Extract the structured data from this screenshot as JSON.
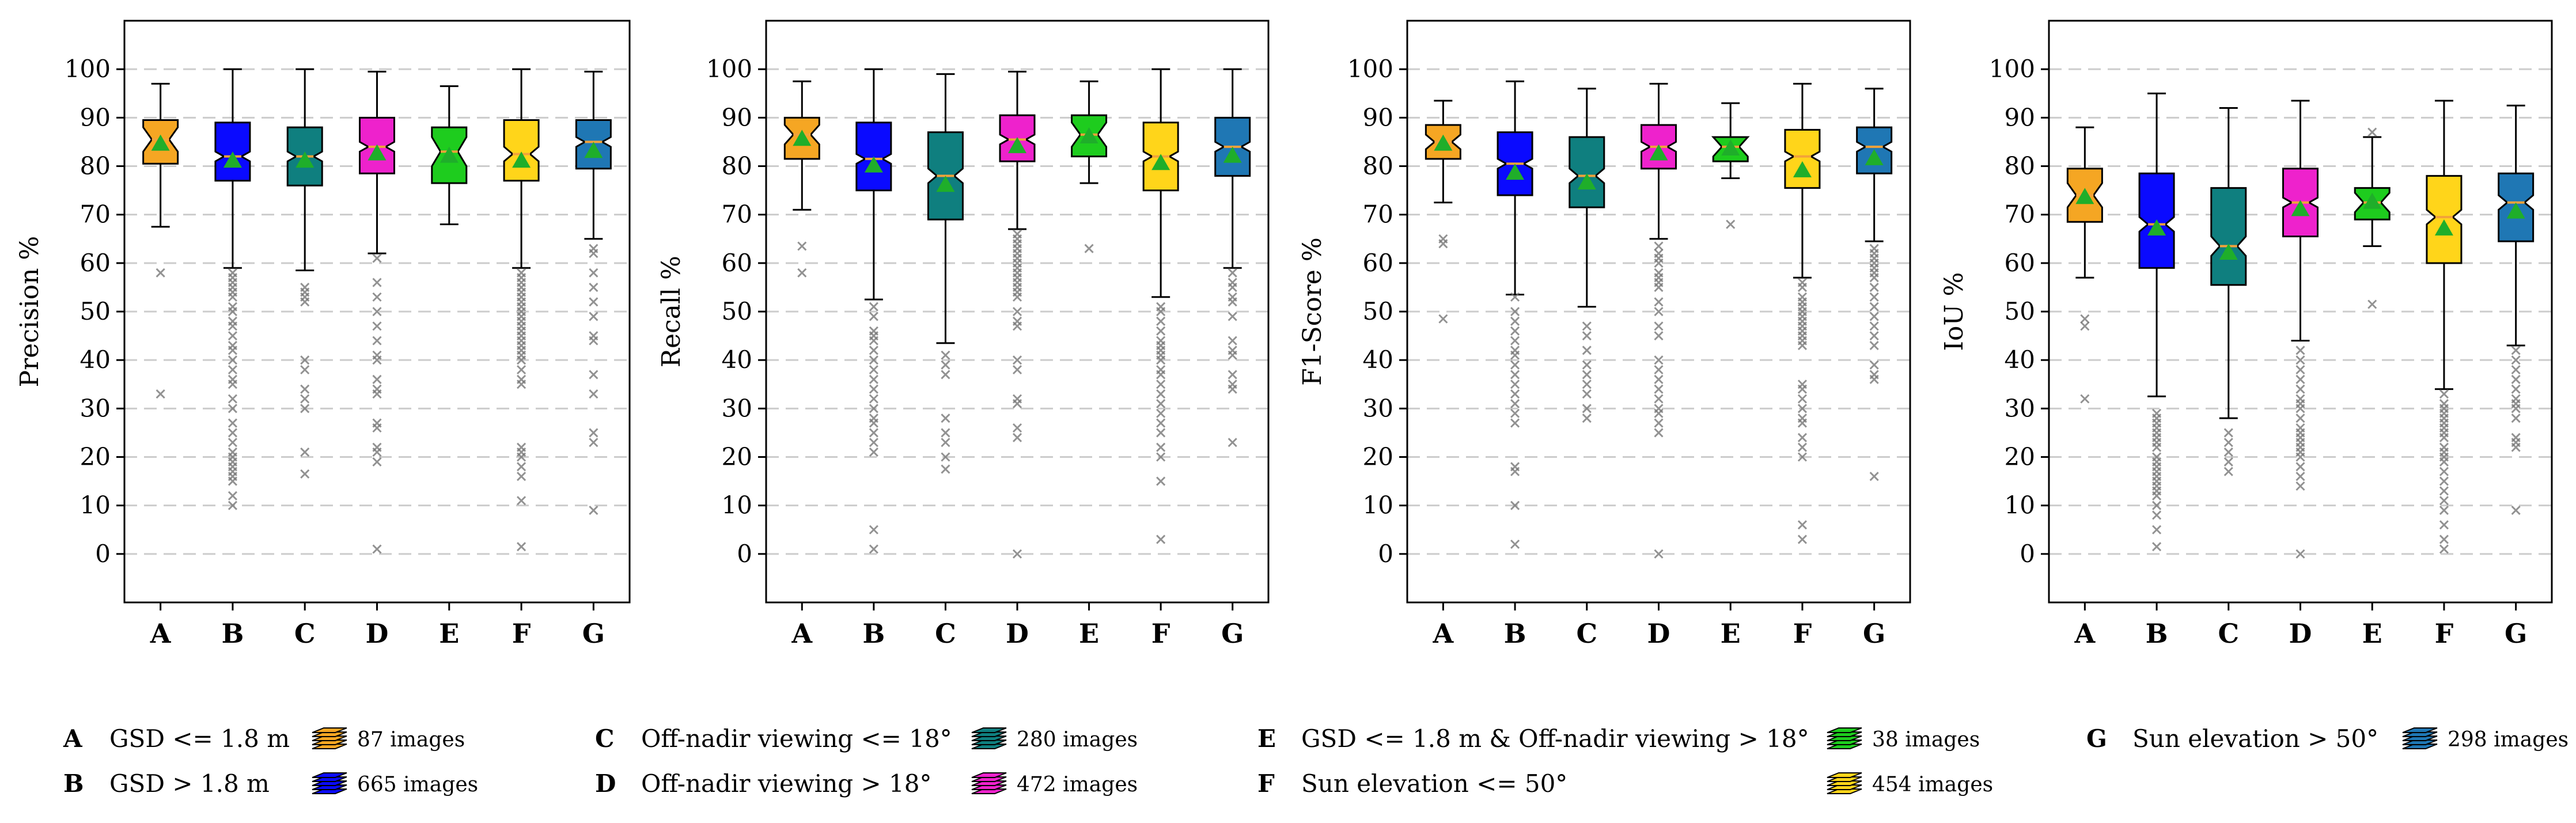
{
  "chart_data": [
    {
      "type": "boxplot",
      "ylabel": "Precision %",
      "categories": [
        "A",
        "B",
        "C",
        "D",
        "E",
        "F",
        "G"
      ],
      "yticks": [
        0,
        10,
        20,
        30,
        40,
        50,
        60,
        70,
        80,
        90,
        100
      ],
      "ylim": [
        -10,
        110
      ],
      "grid": "horizontal dashed",
      "boxes": [
        {
          "category": "A",
          "q1": 80.5,
          "median": 85.5,
          "q3": 89.5,
          "whislo": 67.5,
          "whishi": 97,
          "mean": 84.5,
          "notch_lo": 83,
          "notch_hi": 88,
          "fliers": [
            58,
            33
          ]
        },
        {
          "category": "B",
          "q1": 77,
          "median": 82,
          "q3": 89,
          "whislo": 59,
          "whishi": 100,
          "mean": 81,
          "notch_lo": 81,
          "notch_hi": 83,
          "fliers": [
            58,
            57,
            56,
            55,
            54,
            53,
            51,
            50,
            48,
            47,
            45,
            43,
            42,
            40,
            38,
            36,
            35,
            32,
            30,
            27,
            25,
            23,
            21,
            20,
            19,
            18,
            17,
            16,
            15,
            12,
            10
          ]
        },
        {
          "category": "C",
          "q1": 76,
          "median": 82,
          "q3": 88,
          "whislo": 58.5,
          "whishi": 100,
          "mean": 81,
          "notch_lo": 81,
          "notch_hi": 83,
          "fliers": [
            55,
            54,
            53,
            52,
            40,
            38,
            34,
            32,
            30,
            21,
            16.5
          ]
        },
        {
          "category": "D",
          "q1": 78.5,
          "median": 84,
          "q3": 90,
          "whislo": 62,
          "whishi": 99.5,
          "mean": 82.5,
          "notch_lo": 83,
          "notch_hi": 85,
          "fliers": [
            61,
            56,
            53,
            50,
            47,
            44,
            41,
            40,
            36,
            34,
            33,
            27,
            26,
            22,
            21,
            19,
            1
          ]
        },
        {
          "category": "E",
          "q1": 76.5,
          "median": 83,
          "q3": 88,
          "whislo": 68,
          "whishi": 96.5,
          "mean": 82,
          "notch_lo": 80,
          "notch_hi": 86,
          "fliers": []
        },
        {
          "category": "F",
          "q1": 77,
          "median": 82.5,
          "q3": 89.5,
          "whislo": 59,
          "whishi": 100,
          "mean": 81,
          "notch_lo": 81,
          "notch_hi": 84,
          "fliers": [
            58,
            57,
            56,
            55,
            54,
            53,
            52,
            51,
            50,
            49,
            48,
            47,
            46,
            45,
            44,
            43,
            42,
            41,
            40,
            38,
            36,
            35,
            22,
            21,
            20,
            18,
            16,
            11,
            1.5
          ]
        },
        {
          "category": "G",
          "q1": 79.5,
          "median": 85,
          "q3": 89.5,
          "whislo": 65,
          "whishi": 99.5,
          "mean": 83,
          "notch_lo": 84,
          "notch_hi": 86,
          "fliers": [
            63,
            62,
            58,
            55,
            52,
            49,
            45,
            44,
            37,
            33,
            25,
            23,
            9
          ]
        }
      ]
    },
    {
      "type": "boxplot",
      "ylabel": "Recall %",
      "categories": [
        "A",
        "B",
        "C",
        "D",
        "E",
        "F",
        "G"
      ],
      "yticks": [
        0,
        10,
        20,
        30,
        40,
        50,
        60,
        70,
        80,
        90,
        100
      ],
      "ylim": [
        -10,
        110
      ],
      "grid": "horizontal dashed",
      "boxes": [
        {
          "category": "A",
          "q1": 81.5,
          "median": 86.5,
          "q3": 90,
          "whislo": 71,
          "whishi": 97.5,
          "mean": 85.5,
          "notch_lo": 84.5,
          "notch_hi": 88.5,
          "fliers": [
            63.5,
            58
          ]
        },
        {
          "category": "B",
          "q1": 75,
          "median": 81.5,
          "q3": 89,
          "whislo": 52.5,
          "whishi": 100,
          "mean": 80,
          "notch_lo": 80.5,
          "notch_hi": 82.5,
          "fliers": [
            51,
            49,
            46,
            45,
            44,
            42,
            40,
            38,
            36,
            34,
            32,
            30,
            28,
            27,
            25,
            23,
            21,
            5,
            1
          ]
        },
        {
          "category": "C",
          "q1": 69,
          "median": 78,
          "q3": 87,
          "whislo": 43.5,
          "whishi": 99,
          "mean": 76,
          "notch_lo": 76.5,
          "notch_hi": 79.5,
          "fliers": [
            41,
            39,
            37,
            28,
            25,
            23,
            20,
            17.5
          ]
        },
        {
          "category": "D",
          "q1": 81,
          "median": 85.5,
          "q3": 90.5,
          "whislo": 67,
          "whishi": 99.5,
          "mean": 84,
          "notch_lo": 84.5,
          "notch_hi": 86.5,
          "fliers": [
            66,
            65,
            64,
            63,
            62,
            61,
            60,
            59,
            58,
            57,
            56,
            55,
            54,
            53,
            50,
            48,
            47,
            40,
            38,
            32,
            31,
            26,
            24,
            0
          ]
        },
        {
          "category": "E",
          "q1": 82,
          "median": 86.5,
          "q3": 90.5,
          "whislo": 76.5,
          "whishi": 97.5,
          "mean": 86,
          "notch_lo": 84,
          "notch_hi": 89,
          "fliers": [
            63
          ]
        },
        {
          "category": "F",
          "q1": 75,
          "median": 82,
          "q3": 89,
          "whislo": 53,
          "whishi": 100,
          "mean": 80.5,
          "notch_lo": 81,
          "notch_hi": 83,
          "fliers": [
            51,
            50,
            48,
            46,
            44,
            43,
            42,
            41,
            40,
            38,
            37,
            35,
            33,
            31,
            29,
            27,
            25,
            22,
            20,
            15,
            3
          ]
        },
        {
          "category": "G",
          "q1": 78,
          "median": 84,
          "q3": 90,
          "whislo": 59,
          "whishi": 100,
          "mean": 82,
          "notch_lo": 83,
          "notch_hi": 85,
          "fliers": [
            58,
            56,
            55,
            53,
            52,
            49,
            44,
            42,
            41,
            37,
            35,
            34,
            23
          ]
        }
      ]
    },
    {
      "type": "boxplot",
      "ylabel": "F1-Score %",
      "categories": [
        "A",
        "B",
        "C",
        "D",
        "E",
        "F",
        "G"
      ],
      "yticks": [
        0,
        10,
        20,
        30,
        40,
        50,
        60,
        70,
        80,
        90,
        100
      ],
      "ylim": [
        -10,
        110
      ],
      "grid": "horizontal dashed",
      "boxes": [
        {
          "category": "A",
          "q1": 81.5,
          "median": 85,
          "q3": 88.5,
          "whislo": 72.5,
          "whishi": 93.5,
          "mean": 84.5,
          "notch_lo": 83.5,
          "notch_hi": 86.5,
          "fliers": [
            65,
            64,
            48.5
          ]
        },
        {
          "category": "B",
          "q1": 74,
          "median": 80.5,
          "q3": 87,
          "whislo": 53.5,
          "whishi": 97.5,
          "mean": 78.5,
          "notch_lo": 79.5,
          "notch_hi": 81.5,
          "fliers": [
            53,
            50,
            48,
            46,
            44,
            42,
            41,
            39,
            37,
            35,
            33,
            31,
            29,
            27,
            18,
            17,
            10,
            2
          ]
        },
        {
          "category": "C",
          "q1": 71.5,
          "median": 78,
          "q3": 86,
          "whislo": 51,
          "whishi": 96,
          "mean": 76.5,
          "notch_lo": 76.5,
          "notch_hi": 79.5,
          "fliers": [
            47,
            45,
            42,
            39,
            37,
            35,
            33,
            30,
            28
          ]
        },
        {
          "category": "D",
          "q1": 79.5,
          "median": 84,
          "q3": 88.5,
          "whislo": 65,
          "whishi": 97,
          "mean": 82.5,
          "notch_lo": 83,
          "notch_hi": 85,
          "fliers": [
            63.5,
            62,
            61,
            60,
            58,
            57,
            56,
            55,
            52,
            50,
            47,
            45,
            40,
            38,
            36,
            34,
            32,
            30,
            29,
            27,
            25,
            0
          ]
        },
        {
          "category": "E",
          "q1": 81,
          "median": 84,
          "q3": 86,
          "whislo": 77.5,
          "whishi": 93,
          "mean": 83.5,
          "notch_lo": 82,
          "notch_hi": 86,
          "fliers": [
            68
          ]
        },
        {
          "category": "F",
          "q1": 75.5,
          "median": 82,
          "q3": 87.5,
          "whislo": 57,
          "whishi": 97,
          "mean": 79,
          "notch_lo": 81,
          "notch_hi": 83,
          "fliers": [
            56,
            55,
            53,
            52,
            51,
            50,
            49,
            48,
            47,
            46,
            45,
            44,
            43,
            35,
            34,
            32,
            30,
            28,
            27,
            24,
            22,
            20,
            6,
            3
          ]
        },
        {
          "category": "G",
          "q1": 78.5,
          "median": 84,
          "q3": 88,
          "whislo": 64.5,
          "whishi": 96,
          "mean": 81.5,
          "notch_lo": 83,
          "notch_hi": 85,
          "fliers": [
            63,
            62,
            61,
            60,
            59,
            58,
            57,
            55,
            53,
            51,
            49,
            47,
            45,
            43,
            39,
            37,
            36,
            16
          ]
        }
      ]
    },
    {
      "type": "boxplot",
      "ylabel": "IoU %",
      "categories": [
        "A",
        "B",
        "C",
        "D",
        "E",
        "F",
        "G"
      ],
      "yticks": [
        0,
        10,
        20,
        30,
        40,
        50,
        60,
        70,
        80,
        90,
        100
      ],
      "ylim": [
        -10,
        110
      ],
      "grid": "horizontal dashed",
      "boxes": [
        {
          "category": "A",
          "q1": 68.5,
          "median": 74,
          "q3": 79.5,
          "whislo": 57,
          "whishi": 88,
          "mean": 73.5,
          "notch_lo": 71.5,
          "notch_hi": 76.5,
          "fliers": [
            48.5,
            47,
            32
          ]
        },
        {
          "category": "B",
          "q1": 59,
          "median": 68,
          "q3": 78.5,
          "whislo": 32.5,
          "whishi": 95,
          "mean": 67,
          "notch_lo": 66.5,
          "notch_hi": 69.5,
          "fliers": [
            29,
            28,
            27,
            26,
            25,
            24,
            23,
            22,
            20,
            19,
            18,
            17,
            16,
            15,
            14,
            13,
            12,
            10,
            8,
            5,
            1.5
          ]
        },
        {
          "category": "C",
          "q1": 55.5,
          "median": 63.5,
          "q3": 75.5,
          "whislo": 28,
          "whishi": 92,
          "mean": 62,
          "notch_lo": 61.5,
          "notch_hi": 65.5,
          "fliers": [
            25,
            23,
            21,
            19,
            17
          ]
        },
        {
          "category": "D",
          "q1": 65.5,
          "median": 72.5,
          "q3": 79.5,
          "whislo": 44,
          "whishi": 93.5,
          "mean": 71,
          "notch_lo": 71.5,
          "notch_hi": 73.5,
          "fliers": [
            42,
            40,
            38,
            36,
            34,
            32,
            31,
            30,
            28,
            26,
            25,
            24,
            23,
            22,
            21,
            20,
            18,
            16,
            14,
            0
          ]
        },
        {
          "category": "E",
          "q1": 69,
          "median": 72.5,
          "q3": 75.5,
          "whislo": 63.5,
          "whishi": 86,
          "mean": 72.5,
          "notch_lo": 70.5,
          "notch_hi": 74.5,
          "fliers": [
            87,
            51.5
          ]
        },
        {
          "category": "F",
          "q1": 60,
          "median": 69.5,
          "q3": 78,
          "whislo": 34,
          "whishi": 93.5,
          "mean": 67,
          "notch_lo": 68,
          "notch_hi": 71,
          "fliers": [
            33,
            31,
            30,
            29,
            28,
            27,
            26,
            25,
            24,
            22,
            21,
            20,
            19,
            17,
            15,
            13,
            11,
            9,
            6,
            3,
            1
          ]
        },
        {
          "category": "G",
          "q1": 64.5,
          "median": 72.5,
          "q3": 78.5,
          "whislo": 43,
          "whishi": 92.5,
          "mean": 70.5,
          "notch_lo": 71,
          "notch_hi": 74,
          "fliers": [
            42,
            40,
            38,
            36,
            34,
            32,
            31,
            30,
            28,
            24,
            23,
            22,
            9
          ]
        }
      ]
    }
  ],
  "colors": {
    "A": "#f5a623",
    "B": "#0a0aff",
    "C": "#0f7f7f",
    "D": "#ee22cc",
    "E": "#1ecc1e",
    "F": "#ffd51a",
    "G": "#1f77b4",
    "median_line": "#f2a23a",
    "mean_marker": "#1fae2a",
    "flier": "#777777",
    "grid": "#cccccc"
  },
  "legend": [
    {
      "key": "A",
      "description": "GSD <= 1.8 m",
      "count": "87 images"
    },
    {
      "key": "B",
      "description": "GSD > 1.8 m",
      "count": "665 images"
    },
    {
      "key": "C",
      "description": "Off-nadir viewing <= 18°",
      "count": "280 images"
    },
    {
      "key": "D",
      "description": "Off-nadir viewing > 18°",
      "count": "472 images"
    },
    {
      "key": "E",
      "description": "GSD <= 1.8 m & Off-nadir viewing > 18°",
      "count": "38 images"
    },
    {
      "key": "F",
      "description": "Sun elevation <= 50°",
      "count": "454 images"
    },
    {
      "key": "G",
      "description": "Sun elevation > 50°",
      "count": "298 images"
    }
  ]
}
